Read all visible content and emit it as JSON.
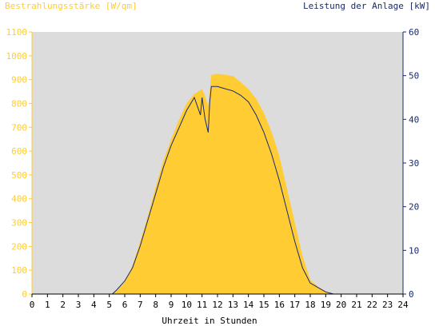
{
  "chart_data": {
    "type": "area",
    "left_axis_title": "Bestrahlungsstärke [W/qm]",
    "right_axis_title": "Leistung der Anlage [kW]",
    "xlabel": "Uhrzeit in Stunden",
    "xlim": [
      0,
      24
    ],
    "x_ticks": [
      "0",
      "1",
      "2",
      "3",
      "4",
      "5",
      "6",
      "7",
      "8",
      "9",
      "10",
      "11",
      "12",
      "13",
      "14",
      "15",
      "16",
      "17",
      "18",
      "19",
      "20",
      "21",
      "22",
      "23",
      "24"
    ],
    "left_ylim": [
      0,
      1100
    ],
    "left_ticks": [
      "0",
      "100",
      "200",
      "300",
      "400",
      "500",
      "600",
      "700",
      "800",
      "900",
      "1000",
      "1100"
    ],
    "right_ylim": [
      0,
      60
    ],
    "right_ticks": [
      "0",
      "10",
      "20",
      "30",
      "40",
      "50",
      "60"
    ],
    "grid": false,
    "series": [
      {
        "name": "Bestrahlungsstärke [W/qm]",
        "axis": "left",
        "color": "#ffcc33",
        "x": [
          0,
          5.2,
          5.5,
          6,
          6.5,
          7,
          7.5,
          8,
          8.5,
          9,
          9.5,
          10,
          10.5,
          11,
          11.2,
          11.4,
          11.6,
          12,
          12.5,
          13,
          13.5,
          14,
          14.5,
          15,
          15.5,
          16,
          16.5,
          17,
          17.5,
          18,
          18.5,
          19,
          19.5,
          20,
          24
        ],
        "values": [
          0,
          0,
          15,
          50,
          120,
          220,
          330,
          450,
          560,
          650,
          730,
          800,
          840,
          860,
          830,
          790,
          920,
          925,
          920,
          915,
          890,
          860,
          820,
          760,
          680,
          580,
          440,
          300,
          160,
          60,
          30,
          10,
          0,
          0,
          0
        ]
      },
      {
        "name": "Leistung der Anlage [kW]",
        "axis": "right",
        "color": "#1a2a6c",
        "x": [
          0,
          5.2,
          5.5,
          6,
          6.5,
          7,
          7.5,
          8,
          8.5,
          9,
          9.5,
          10,
          10.5,
          10.9,
          11,
          11.2,
          11.4,
          11.5,
          11.6,
          12,
          12.5,
          13,
          13.5,
          14,
          14.5,
          15,
          15.5,
          16,
          16.5,
          17,
          17.5,
          18,
          18.5,
          19,
          19.5,
          20,
          24
        ],
        "values": [
          0,
          0,
          1,
          3,
          6,
          11,
          17,
          23,
          29,
          34,
          38,
          42,
          45,
          41,
          45,
          40,
          37,
          44,
          47.5,
          47.5,
          47,
          46.5,
          45.5,
          44,
          41,
          37,
          32,
          26,
          19,
          12,
          6,
          2.5,
          1.5,
          0.5,
          0,
          0,
          0
        ]
      }
    ]
  }
}
